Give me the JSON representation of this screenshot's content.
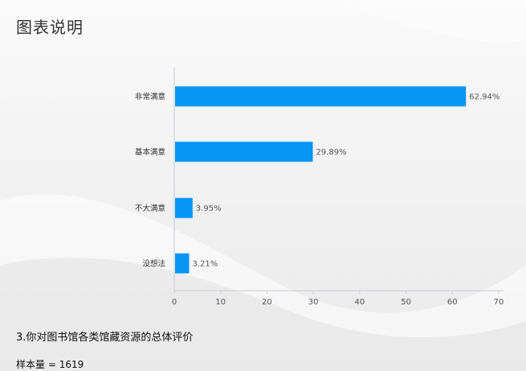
{
  "page": {
    "title": "图表说明",
    "question": "3.你对图书馆各类馆藏资源的总体评价",
    "sample_label": "样本量",
    "sample_size": "1619"
  },
  "chart_data": {
    "type": "bar",
    "orientation": "horizontal",
    "categories": [
      "非常满意",
      "基本满意",
      "不大满意",
      "没想法"
    ],
    "values": [
      62.94,
      29.89,
      3.95,
      3.21
    ],
    "value_labels": [
      "62.94%",
      "29.89%",
      "3.95%",
      "3.21%"
    ],
    "xlim": [
      0,
      70
    ],
    "x_ticks": [
      0,
      10,
      20,
      30,
      40,
      50,
      60,
      70
    ],
    "grid": false,
    "bar_color": "#0896f5"
  }
}
